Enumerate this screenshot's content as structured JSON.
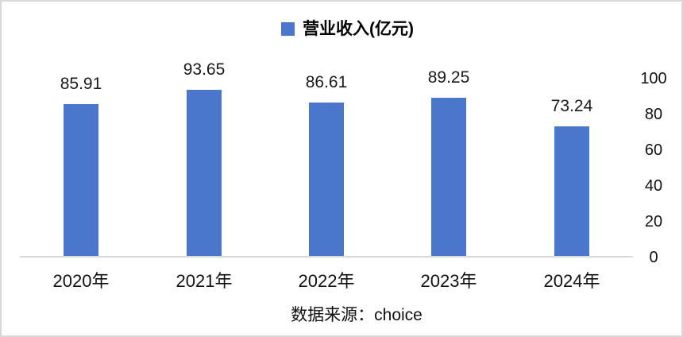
{
  "chart_data": {
    "type": "bar",
    "title": "",
    "series_name": "营业收入(亿元)",
    "categories": [
      "2020年",
      "2021年",
      "2022年",
      "2023年",
      "2024年"
    ],
    "values": [
      85.91,
      93.65,
      86.61,
      89.25,
      73.24
    ],
    "data_labels": [
      "85.91",
      "93.65",
      "86.61",
      "89.25",
      "73.24"
    ],
    "ylim": [
      0,
      100
    ],
    "yticks": [
      0,
      20,
      40,
      60,
      80,
      100
    ],
    "yaxis_side": "right",
    "legend_position": "top-center",
    "grid": false,
    "bar_color": "#4A76CB",
    "axis_line_color": "#D9D9D9",
    "source_note": "数据来源：choice"
  }
}
